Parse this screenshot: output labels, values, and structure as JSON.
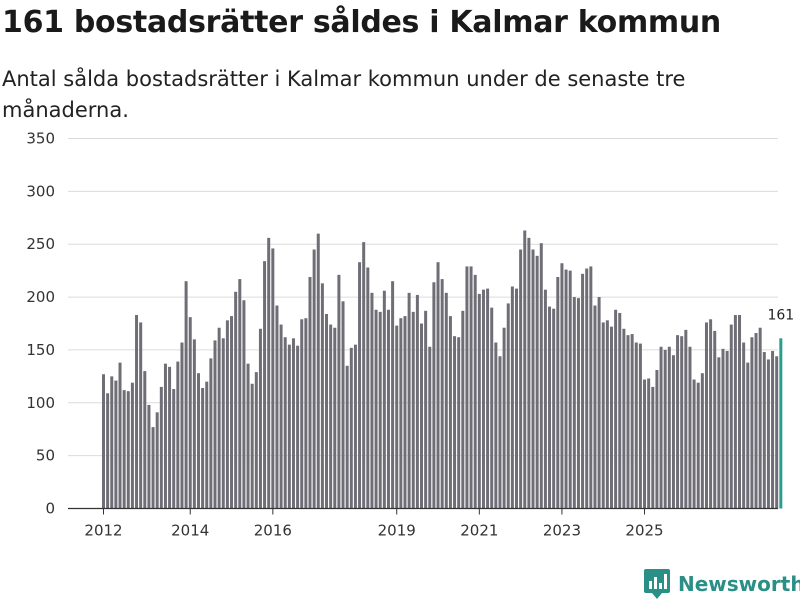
{
  "title": "161 bostadsrätter såldes i Kalmar kommun",
  "subtitle": "Antal sålda bostadsrätter i Kalmar kommun under de senaste tre månaderna.",
  "brand": {
    "name": "Newsworthy",
    "icon": "newsworthy-logo-icon"
  },
  "colors": {
    "bar": "#6f6e76",
    "highlight": "#2a9d8f",
    "grid": "#dcdcdc",
    "axis": "#333333"
  },
  "chart_data": {
    "type": "bar",
    "title": "161 bostadsrätter såldes i Kalmar kommun",
    "xlabel": "",
    "ylabel": "",
    "ylim": [
      0,
      350
    ],
    "yticks": [
      0,
      50,
      100,
      150,
      200,
      250,
      300,
      350
    ],
    "x_start": {
      "year": 2012,
      "month": 1
    },
    "xticks": [
      "2012",
      "2014",
      "2016",
      "2019",
      "2021",
      "2023",
      "2025"
    ],
    "xtick_index": [
      0,
      21,
      41,
      71,
      91,
      111,
      131
    ],
    "highlight_label": "161",
    "values": [
      127,
      109,
      125,
      121,
      138,
      112,
      111,
      119,
      183,
      176,
      130,
      98,
      77,
      91,
      115,
      137,
      134,
      113,
      139,
      157,
      215,
      181,
      160,
      128,
      114,
      120,
      142,
      159,
      171,
      161,
      178,
      182,
      205,
      217,
      197,
      137,
      118,
      129,
      170,
      234,
      256,
      246,
      192,
      174,
      162,
      155,
      161,
      154,
      179,
      180,
      219,
      245,
      260,
      213,
      184,
      174,
      171,
      221,
      196,
      135,
      152,
      155,
      233,
      252,
      228,
      204,
      188,
      186,
      206,
      188,
      215,
      173,
      180,
      182,
      204,
      186,
      202,
      175,
      187,
      153,
      214,
      233,
      217,
      204,
      182,
      163,
      162,
      187,
      229,
      229,
      221,
      203,
      207,
      208,
      190,
      157,
      144,
      171,
      194,
      210,
      208,
      245,
      263,
      256,
      245,
      239,
      251,
      207,
      191,
      189,
      219,
      232,
      226,
      225,
      200,
      199,
      222,
      227,
      229,
      192,
      200,
      176,
      178,
      172,
      188,
      185,
      170,
      164,
      165,
      157,
      156,
      122,
      123,
      115,
      131,
      153,
      150,
      153,
      145,
      164,
      163,
      169,
      153,
      122,
      119,
      128,
      176,
      179,
      168,
      143,
      151,
      149,
      174,
      183,
      183,
      157,
      138,
      162,
      166,
      171,
      148,
      141,
      149,
      144,
      161
    ]
  }
}
